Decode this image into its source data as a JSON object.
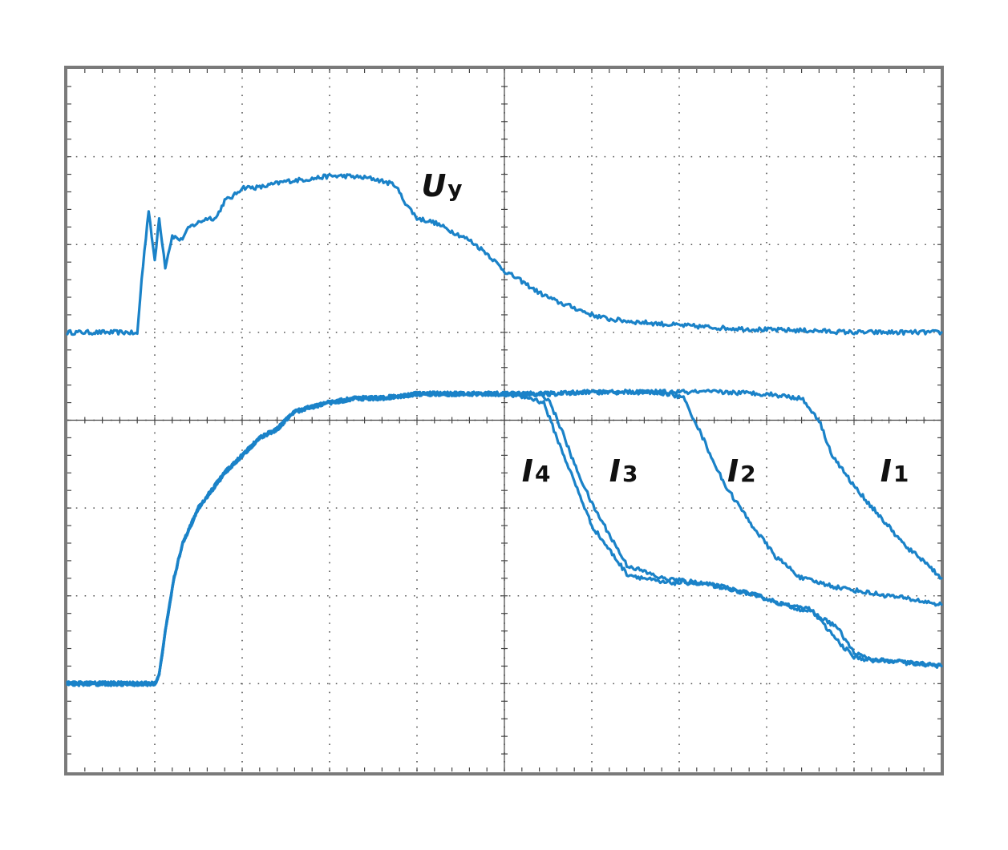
{
  "chart_data": {
    "type": "line",
    "title": "",
    "xlabel": "",
    "ylabel": "",
    "grid": true,
    "xlim": [
      0,
      10
    ],
    "ylim": [
      0,
      8
    ],
    "trace_color": "#1a82c8",
    "series": [
      {
        "name": "Uy",
        "label_main": "U",
        "label_sub": "y",
        "x": [
          0,
          0.7,
          0.8,
          0.85,
          0.93,
          1.0,
          1.05,
          1.12,
          1.2,
          1.3,
          1.4,
          1.5,
          1.6,
          1.7,
          1.8,
          1.9,
          2.0,
          2.2,
          2.5,
          2.8,
          3.0,
          3.2,
          3.5,
          3.75,
          3.85,
          4.0,
          4.2,
          4.4,
          4.6,
          4.8,
          5.0,
          5.2,
          5.4,
          5.6,
          5.8,
          6.0,
          6.2,
          6.5,
          7.0,
          7.5,
          8.0,
          8.5,
          9.0,
          9.5,
          10.0
        ],
        "y": [
          5.0,
          5.0,
          4.98,
          5.6,
          6.4,
          5.8,
          6.3,
          5.75,
          6.1,
          6.05,
          6.2,
          6.25,
          6.3,
          6.3,
          6.5,
          6.55,
          6.65,
          6.65,
          6.72,
          6.75,
          6.78,
          6.78,
          6.75,
          6.68,
          6.5,
          6.3,
          6.25,
          6.15,
          6.05,
          5.9,
          5.7,
          5.58,
          5.45,
          5.35,
          5.28,
          5.2,
          5.15,
          5.12,
          5.08,
          5.05,
          5.03,
          5.02,
          5.0,
          5.0,
          5.0
        ]
      },
      {
        "name": "I4",
        "label_main": "I",
        "label_sub": "4",
        "x": [
          0,
          1.0,
          1.05,
          1.12,
          1.22,
          1.32,
          1.5,
          1.65,
          1.8,
          2.0,
          2.2,
          2.4,
          2.6,
          2.8,
          3.0,
          3.3,
          3.6,
          4.0,
          4.5,
          5.0,
          5.3,
          5.45,
          5.6,
          5.8,
          6.0,
          6.4,
          6.8,
          7.2,
          7.5,
          7.9,
          8.2,
          8.5,
          8.8,
          9.0,
          9.2,
          9.5,
          9.8,
          10.0
        ],
        "y": [
          1.0,
          1.0,
          1.1,
          1.6,
          2.2,
          2.6,
          3.0,
          3.2,
          3.4,
          3.6,
          3.8,
          3.9,
          4.1,
          4.15,
          4.2,
          4.25,
          4.25,
          4.3,
          4.3,
          4.3,
          4.25,
          4.2,
          3.8,
          3.3,
          2.8,
          2.25,
          2.15,
          2.15,
          2.1,
          2.0,
          1.9,
          1.82,
          1.65,
          1.35,
          1.27,
          1.25,
          1.22,
          1.2
        ]
      },
      {
        "name": "I3",
        "label_main": "I",
        "label_sub": "3",
        "x": [
          0,
          1.0,
          1.05,
          1.12,
          1.22,
          1.32,
          1.5,
          1.65,
          1.8,
          2.0,
          2.2,
          2.4,
          2.6,
          2.8,
          3.0,
          3.3,
          3.6,
          4.0,
          4.5,
          5.0,
          5.3,
          5.5,
          5.65,
          5.8,
          6.0,
          6.4,
          6.8,
          7.2,
          7.5,
          7.9,
          8.2,
          8.5,
          8.8,
          9.0,
          9.2,
          9.5,
          9.8,
          10.0
        ],
        "y": [
          1.0,
          1.0,
          1.1,
          1.6,
          2.2,
          2.6,
          3.0,
          3.2,
          3.4,
          3.6,
          3.8,
          3.9,
          4.1,
          4.15,
          4.2,
          4.25,
          4.25,
          4.3,
          4.3,
          4.3,
          4.3,
          4.25,
          3.9,
          3.5,
          3.05,
          2.35,
          2.2,
          2.15,
          2.1,
          2.0,
          1.9,
          1.85,
          1.5,
          1.3,
          1.27,
          1.25,
          1.22,
          1.2
        ]
      },
      {
        "name": "I2",
        "label_main": "I",
        "label_sub": "2",
        "x": [
          0,
          1.0,
          1.05,
          1.12,
          1.22,
          1.32,
          1.5,
          1.65,
          1.8,
          2.0,
          2.2,
          2.4,
          2.6,
          2.8,
          3.0,
          3.3,
          3.6,
          4.0,
          4.5,
          5.0,
          5.5,
          6.0,
          6.5,
          6.9,
          7.05,
          7.2,
          7.5,
          7.8,
          8.1,
          8.4,
          8.8,
          9.2,
          9.6,
          10.0
        ],
        "y": [
          1.0,
          1.0,
          1.1,
          1.6,
          2.2,
          2.6,
          3.0,
          3.2,
          3.4,
          3.6,
          3.8,
          3.9,
          4.1,
          4.15,
          4.2,
          4.25,
          4.25,
          4.3,
          4.3,
          4.3,
          4.3,
          4.32,
          4.32,
          4.3,
          4.25,
          3.95,
          3.3,
          2.85,
          2.45,
          2.2,
          2.1,
          2.03,
          1.97,
          1.9
        ]
      },
      {
        "name": "I1",
        "label_main": "I",
        "label_sub": "1",
        "x": [
          0,
          1.0,
          1.05,
          1.12,
          1.22,
          1.32,
          1.5,
          1.65,
          1.8,
          2.0,
          2.2,
          2.4,
          2.6,
          2.8,
          3.0,
          3.3,
          3.6,
          4.0,
          4.5,
          5.0,
          5.5,
          6.0,
          6.5,
          7.0,
          7.5,
          8.0,
          8.4,
          8.6,
          8.75,
          9.0,
          9.3,
          9.6,
          9.8,
          10.0
        ],
        "y": [
          1.0,
          1.0,
          1.1,
          1.6,
          2.2,
          2.6,
          3.0,
          3.2,
          3.4,
          3.6,
          3.8,
          3.9,
          4.1,
          4.15,
          4.2,
          4.25,
          4.25,
          4.3,
          4.3,
          4.3,
          4.3,
          4.32,
          4.32,
          4.32,
          4.32,
          4.3,
          4.25,
          4.0,
          3.6,
          3.25,
          2.9,
          2.55,
          2.4,
          2.2
        ]
      }
    ],
    "annotations": [
      {
        "series": "Uy",
        "x": 4.05,
        "y": 6.55
      },
      {
        "series": "I4",
        "x": 5.2,
        "y": 3.3
      },
      {
        "series": "I3",
        "x": 6.2,
        "y": 3.3
      },
      {
        "series": "I2",
        "x": 7.55,
        "y": 3.3
      },
      {
        "series": "I1",
        "x": 9.3,
        "y": 3.3
      }
    ]
  }
}
